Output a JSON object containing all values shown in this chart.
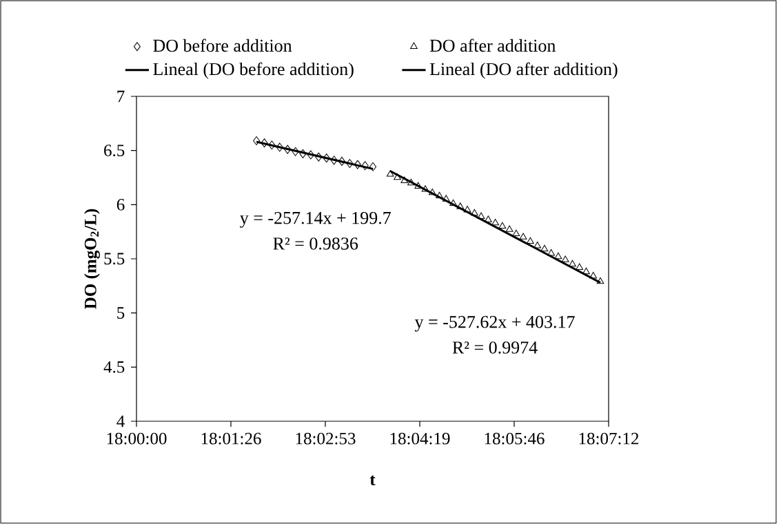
{
  "chart_data": {
    "type": "scatter",
    "xlabel": "t",
    "ylabel": "DO (mgO$_{2}$/L)",
    "xlim": [
      18.0,
      18.12
    ],
    "ylim": [
      4,
      7
    ],
    "xticks": [
      {
        "value": 18.0,
        "label": "18:00:00"
      },
      {
        "value": 18.024,
        "label": "18:01:26"
      },
      {
        "value": 18.048,
        "label": "18:02:53"
      },
      {
        "value": 18.072,
        "label": "18:04:19"
      },
      {
        "value": 18.096,
        "label": "18:05:46"
      },
      {
        "value": 18.12,
        "label": "18:07:12"
      }
    ],
    "yticks": [
      4,
      4.5,
      5,
      5.5,
      6,
      6.5,
      7
    ],
    "legend": "top",
    "grid": false,
    "series": [
      {
        "name": "DO before addition",
        "marker": "diamond",
        "color": "#000000",
        "x": [
          18.0305,
          18.0325,
          18.0344,
          18.0364,
          18.0384,
          18.0404,
          18.0423,
          18.0443,
          18.0463,
          18.0483,
          18.0502,
          18.0522,
          18.0542,
          18.0562,
          18.0581,
          18.0601
        ],
        "values": [
          6.59,
          6.57,
          6.55,
          6.53,
          6.51,
          6.49,
          6.47,
          6.46,
          6.44,
          6.43,
          6.41,
          6.4,
          6.38,
          6.37,
          6.36,
          6.35
        ]
      },
      {
        "name": "DO after addition",
        "marker": "triangle",
        "color": "#000000",
        "x": [
          18.0645,
          18.0663,
          18.0681,
          18.0698,
          18.0716,
          18.0734,
          18.0752,
          18.077,
          18.0787,
          18.0805,
          18.0823,
          18.0841,
          18.0859,
          18.0876,
          18.0894,
          18.0912,
          18.093,
          18.0948,
          18.0965,
          18.0983,
          18.1001,
          18.1019,
          18.1037,
          18.1054,
          18.1072,
          18.109,
          18.1108,
          18.1126,
          18.1143,
          18.1161,
          18.1179
        ],
        "values": [
          6.28,
          6.25,
          6.22,
          6.2,
          6.17,
          6.14,
          6.11,
          6.08,
          6.05,
          6.01,
          5.98,
          5.95,
          5.92,
          5.89,
          5.86,
          5.83,
          5.8,
          5.77,
          5.73,
          5.7,
          5.66,
          5.62,
          5.59,
          5.55,
          5.52,
          5.49,
          5.45,
          5.42,
          5.38,
          5.34,
          5.29
        ]
      },
      {
        "name": "Lineal (DO before addition)",
        "type": "line",
        "marker": "none",
        "line_style": "solid",
        "color": "#000000",
        "x": [
          18.0305,
          18.0601
        ],
        "values": [
          6.58,
          6.33
        ]
      },
      {
        "name": "Lineal (DO after addition)",
        "type": "line",
        "marker": "none",
        "line_style": "solid",
        "color": "#000000",
        "x": [
          18.0645,
          18.1179
        ],
        "values": [
          6.31,
          5.28
        ]
      }
    ],
    "annotations": [
      "y = -257.14x + 199.7",
      "R² = 0.9836",
      "y = -527.62x + 403.17",
      "R² = 0.9974"
    ]
  }
}
